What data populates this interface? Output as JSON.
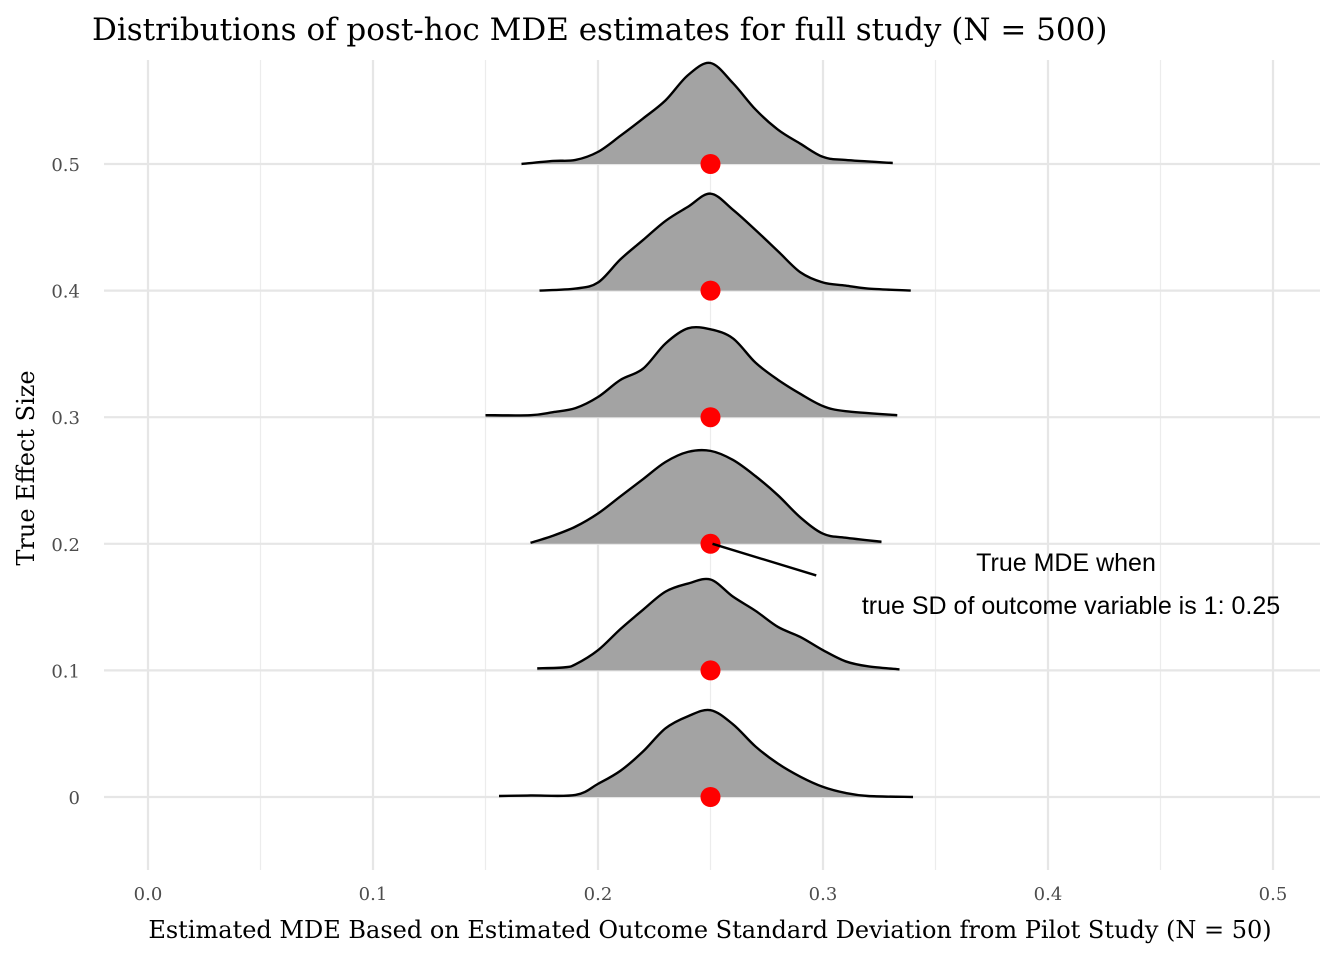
{
  "chart_data": {
    "type": "ridgeline",
    "title": "Distributions of post-hoc MDE estimates for full study (N = 500)",
    "xlabel": "Estimated MDE Based on Estimated Outcome Standard Deviation from Pilot Study (N = 50)",
    "ylabel": "True Effect Size",
    "xlim": [
      -0.01,
      0.52
    ],
    "x_ticks": [
      0.0,
      0.1,
      0.2,
      0.3,
      0.4,
      0.5
    ],
    "x_tick_labels": [
      "0.0",
      "0.1",
      "0.2",
      "0.3",
      "0.4",
      "0.5"
    ],
    "y_categories": [
      0,
      0.1,
      0.2,
      0.3,
      0.4,
      0.5
    ],
    "y_tick_labels": [
      "0",
      "0.1",
      "0.2",
      "0.3",
      "0.4",
      "0.5"
    ],
    "grid": true,
    "fill_color": "#a3a3a3",
    "line_color": "#000000",
    "point_color": "#ff0000",
    "true_mde": 0.25,
    "points": [
      {
        "y": 0,
        "x": 0.25
      },
      {
        "y": 0.1,
        "x": 0.25
      },
      {
        "y": 0.2,
        "x": 0.25
      },
      {
        "y": 0.3,
        "x": 0.25
      },
      {
        "y": 0.4,
        "x": 0.25
      },
      {
        "y": 0.5,
        "x": 0.25
      }
    ],
    "series": [
      {
        "y": 0,
        "range": [
          0.156,
          0.34
        ],
        "density": [
          [
            0.156,
            0.01
          ],
          [
            0.17,
            0.015
          ],
          [
            0.19,
            0.02
          ],
          [
            0.2,
            0.13
          ],
          [
            0.21,
            0.26
          ],
          [
            0.22,
            0.45
          ],
          [
            0.23,
            0.68
          ],
          [
            0.24,
            0.8
          ],
          [
            0.25,
            0.86
          ],
          [
            0.26,
            0.72
          ],
          [
            0.27,
            0.5
          ],
          [
            0.28,
            0.33
          ],
          [
            0.29,
            0.2
          ],
          [
            0.3,
            0.1
          ],
          [
            0.31,
            0.04
          ],
          [
            0.32,
            0.01
          ],
          [
            0.34,
            0.0
          ]
        ]
      },
      {
        "y": 0.1,
        "range": [
          0.173,
          0.334
        ],
        "density": [
          [
            0.173,
            0.02
          ],
          [
            0.185,
            0.03
          ],
          [
            0.19,
            0.06
          ],
          [
            0.2,
            0.2
          ],
          [
            0.21,
            0.41
          ],
          [
            0.22,
            0.6
          ],
          [
            0.23,
            0.78
          ],
          [
            0.24,
            0.86
          ],
          [
            0.25,
            0.9
          ],
          [
            0.26,
            0.73
          ],
          [
            0.27,
            0.59
          ],
          [
            0.28,
            0.43
          ],
          [
            0.29,
            0.33
          ],
          [
            0.3,
            0.2
          ],
          [
            0.31,
            0.09
          ],
          [
            0.32,
            0.04
          ],
          [
            0.334,
            0.01
          ]
        ]
      },
      {
        "y": 0.2,
        "range": [
          0.17,
          0.326
        ],
        "density": [
          [
            0.17,
            0.01
          ],
          [
            0.18,
            0.08
          ],
          [
            0.19,
            0.17
          ],
          [
            0.2,
            0.3
          ],
          [
            0.21,
            0.47
          ],
          [
            0.22,
            0.64
          ],
          [
            0.23,
            0.81
          ],
          [
            0.24,
            0.91
          ],
          [
            0.25,
            0.92
          ],
          [
            0.26,
            0.83
          ],
          [
            0.27,
            0.67
          ],
          [
            0.28,
            0.48
          ],
          [
            0.29,
            0.26
          ],
          [
            0.3,
            0.1
          ],
          [
            0.31,
            0.06
          ],
          [
            0.326,
            0.02
          ]
        ]
      },
      {
        "y": 0.3,
        "range": [
          0.15,
          0.333
        ],
        "density": [
          [
            0.15,
            0.02
          ],
          [
            0.17,
            0.02
          ],
          [
            0.18,
            0.05
          ],
          [
            0.19,
            0.09
          ],
          [
            0.2,
            0.2
          ],
          [
            0.21,
            0.37
          ],
          [
            0.22,
            0.48
          ],
          [
            0.23,
            0.73
          ],
          [
            0.24,
            0.88
          ],
          [
            0.25,
            0.87
          ],
          [
            0.26,
            0.78
          ],
          [
            0.27,
            0.54
          ],
          [
            0.28,
            0.37
          ],
          [
            0.29,
            0.23
          ],
          [
            0.3,
            0.11
          ],
          [
            0.31,
            0.06
          ],
          [
            0.333,
            0.02
          ]
        ]
      },
      {
        "y": 0.4,
        "range": [
          0.174,
          0.339
        ],
        "density": [
          [
            0.174,
            0.0
          ],
          [
            0.19,
            0.02
          ],
          [
            0.2,
            0.08
          ],
          [
            0.21,
            0.31
          ],
          [
            0.22,
            0.5
          ],
          [
            0.23,
            0.69
          ],
          [
            0.24,
            0.83
          ],
          [
            0.25,
            0.96
          ],
          [
            0.26,
            0.8
          ],
          [
            0.27,
            0.6
          ],
          [
            0.28,
            0.39
          ],
          [
            0.29,
            0.18
          ],
          [
            0.3,
            0.08
          ],
          [
            0.31,
            0.05
          ],
          [
            0.32,
            0.02
          ],
          [
            0.339,
            0.0
          ]
        ]
      },
      {
        "y": 0.5,
        "range": [
          0.166,
          0.331
        ],
        "density": [
          [
            0.166,
            0.0
          ],
          [
            0.18,
            0.03
          ],
          [
            0.19,
            0.04
          ],
          [
            0.2,
            0.12
          ],
          [
            0.21,
            0.28
          ],
          [
            0.22,
            0.45
          ],
          [
            0.23,
            0.63
          ],
          [
            0.24,
            0.88
          ],
          [
            0.25,
            1.0
          ],
          [
            0.26,
            0.8
          ],
          [
            0.27,
            0.54
          ],
          [
            0.28,
            0.34
          ],
          [
            0.29,
            0.2
          ],
          [
            0.3,
            0.07
          ],
          [
            0.31,
            0.04
          ],
          [
            0.331,
            0.01
          ]
        ]
      }
    ],
    "annotation": {
      "lines": [
        "True MDE when",
        "true SD of outcome variable is 1: 0.25"
      ],
      "anchor": {
        "x": 0.25,
        "y": 0.2
      },
      "tip": {
        "x": 0.297,
        "y": 0.175
      }
    }
  }
}
